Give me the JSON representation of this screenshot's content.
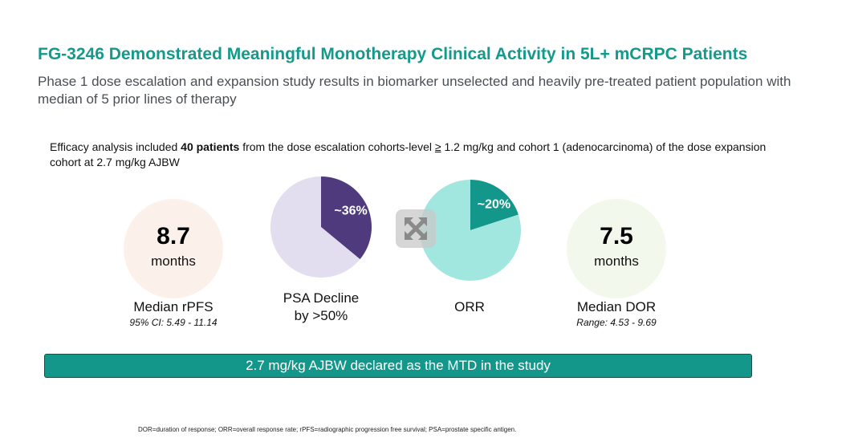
{
  "title": "FG-3246 Demonstrated Meaningful Monotherapy Clinical Activity in 5L+ mCRPC Patients",
  "subtitle": "Phase 1 dose escalation and expansion study results in biomarker unselected and heavily pre-treated patient population with median of 5 prior lines of therapy",
  "intro": {
    "pre": "Efficacy analysis included ",
    "bold": "40 patients",
    "post1": " from the dose escalation cohorts-level ",
    "ge": "≥",
    "post2": " 1.2 mg/kg and cohort 1 (adenocarcinoma) of the dose expansion cohort at 2.7 mg/kg AJBW"
  },
  "metrics": {
    "rpfs": {
      "value": "8.7",
      "unit": "months",
      "label": "Median rPFS",
      "sub": "95% CI: 5.49 - 11.14",
      "color": "#fcf1ea"
    },
    "dor": {
      "value": "7.5",
      "unit": "months",
      "label": "Median DOR",
      "sub": "Range: 4.53 - 9.69",
      "color": "#f3f8ec"
    }
  },
  "chart_data": [
    {
      "type": "pie",
      "label": "PSA Decline by >50%",
      "label_lines": [
        "PSA Decline",
        "by >50%"
      ],
      "slices": [
        {
          "value": 36,
          "label": "~36%",
          "color": "#4f3a7e"
        },
        {
          "value": 64,
          "label": "",
          "color": "#e2def0"
        }
      ]
    },
    {
      "type": "pie",
      "label": "ORR",
      "slices": [
        {
          "value": 20,
          "label": "~20%",
          "color": "#13978a"
        },
        {
          "value": 80,
          "label": "",
          "color": "#a2e6e0"
        }
      ]
    }
  ],
  "banner": "2.7 mg/kg AJBW declared as the MTD in the study",
  "footnote": "DOR=duration of response; ORR=overall response rate; rPFS=radiographic progression free survival; PSA=prostate specific antigen.",
  "icons": {
    "expand": "expand-arrows-icon"
  }
}
